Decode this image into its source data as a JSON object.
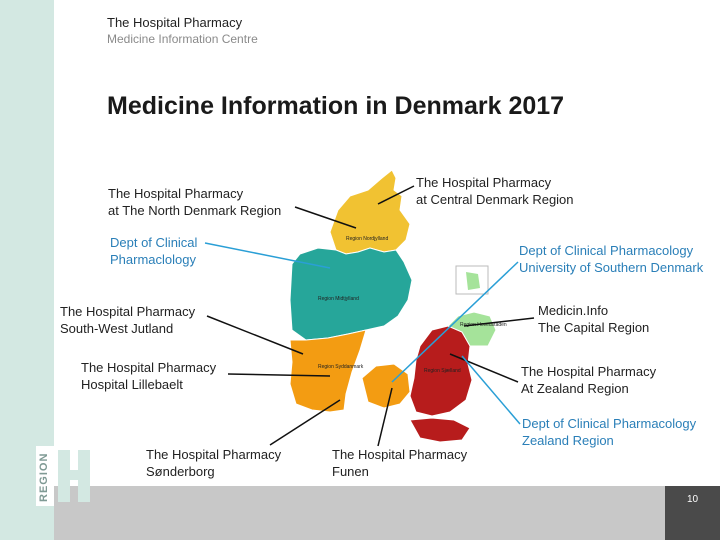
{
  "header": {
    "org": "The Hospital Pharmacy",
    "dept": "Medicine Information Centre"
  },
  "title": "Medicine Information in Denmark 2017",
  "logo": {
    "text": "REGION"
  },
  "map_labels": {
    "north_jutland": "Region Nordjylland",
    "central_jutland": "Region Midtjylland",
    "south_denmark": "Region Syddanmark",
    "zealand": "Region Sjælland",
    "capital": "Region Hovedstaden"
  },
  "labels": {
    "north": [
      "The Hospital Pharmacy",
      "at The North Denmark Region"
    ],
    "clinical_pharm": [
      "Dept of Clinical",
      "Pharmaclology"
    ],
    "southwest": [
      "The Hospital Pharmacy",
      "South-West Jutland"
    ],
    "lillebaelt": [
      "The Hospital Pharmacy",
      "Hospital Lillebaelt"
    ],
    "sonderborg": [
      "The Hospital Pharmacy",
      "Sønderborg"
    ],
    "funen": [
      "The Hospital Pharmacy",
      "Funen"
    ],
    "central": [
      "The Hospital Pharmacy",
      "at Central Denmark Region"
    ],
    "southern_univ": [
      "Dept of Clinical Pharmacology",
      "University of Southern Denmark"
    ],
    "capital": [
      "Medicin.Info",
      "The Capital Region"
    ],
    "zealand": [
      "The Hospital Pharmacy",
      "At Zealand Region"
    ],
    "zealand_clin": [
      "Dept of Clinical Pharmacology",
      "Zealand Region"
    ]
  },
  "page_number": "10",
  "colors": {
    "sidebar": "#d3e8e2",
    "north_region": "#f1c232",
    "central_region": "#26a69a",
    "south_region": "#f39c12",
    "zealand_region": "#b71c1c",
    "capital_region": "#a5e39a",
    "leader_black": "#111111",
    "leader_blue": "#2a9fd6"
  }
}
